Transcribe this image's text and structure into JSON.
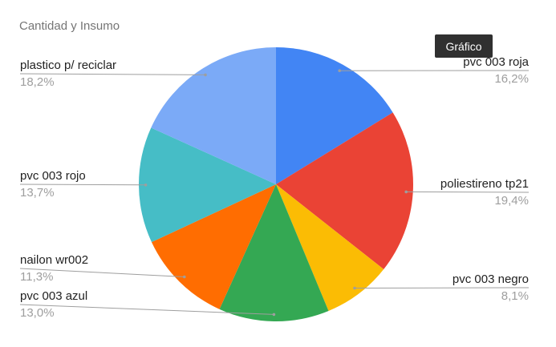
{
  "tooltip": "Gráfico",
  "chart_data": {
    "type": "pie",
    "title": "Cantidad y Insumo",
    "slices": [
      {
        "label": "pvc 003 roja",
        "value": 16.2,
        "pct_label": "16,2%",
        "color": "#4285f4"
      },
      {
        "label": "poliestireno tp21",
        "value": 19.4,
        "pct_label": "19,4%",
        "color": "#ea4335"
      },
      {
        "label": "pvc 003 negro",
        "value": 8.1,
        "pct_label": "8,1%",
        "color": "#fbbc04"
      },
      {
        "label": "pvc 003 azul",
        "value": 13.0,
        "pct_label": "13,0%",
        "color": "#34a853"
      },
      {
        "label": "nailon wr002",
        "value": 11.3,
        "pct_label": "11,3%",
        "color": "#ff6d01"
      },
      {
        "label": "pvc 003 rojo",
        "value": 13.7,
        "pct_label": "13,7%",
        "color": "#46bdc6"
      },
      {
        "label": "plastico p/ reciclar",
        "value": 18.2,
        "pct_label": "18,2%",
        "color": "#7baaf7"
      }
    ]
  }
}
